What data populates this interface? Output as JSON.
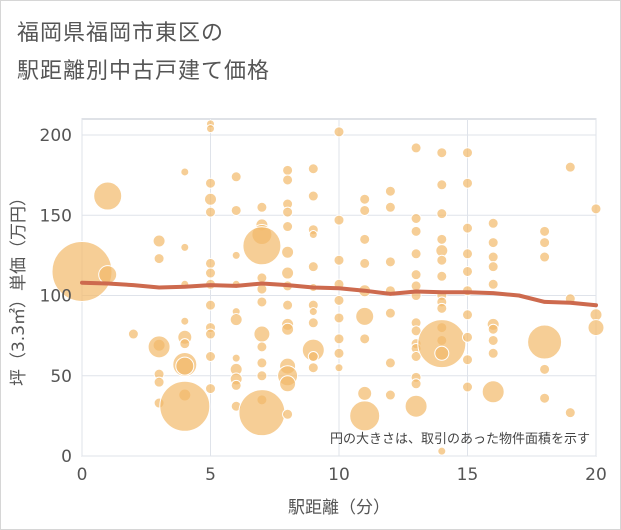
{
  "title_line1": "福岡県福岡市東区の",
  "title_line2": "駅距離別中古戸建て価格",
  "note": "円の大きさは、取引のあった物件面積を示す",
  "colors": {
    "bubble": "#f2b96a",
    "trend": "#cd6a4e",
    "grid": "#dfe3ea",
    "axis": "#bfc5cf"
  },
  "chart_data": {
    "type": "scatter",
    "xlabel": "駅距離（分）",
    "ylabel": "坪（3.3㎡）単価（万円）",
    "xlim": [
      0,
      20
    ],
    "ylim": [
      0,
      210
    ],
    "xticks": [
      0,
      5,
      10,
      15,
      20
    ],
    "yticks": [
      0,
      50,
      100,
      150,
      200
    ],
    "grid": true,
    "points": [
      [
        0,
        115,
        30
      ],
      [
        1,
        162,
        14
      ],
      [
        1,
        113,
        9
      ],
      [
        2,
        76,
        5
      ],
      [
        3,
        134,
        6
      ],
      [
        3,
        123,
        5
      ],
      [
        3,
        69,
        6
      ],
      [
        3,
        68,
        11
      ],
      [
        3,
        51,
        5
      ],
      [
        3,
        46,
        5
      ],
      [
        3,
        33,
        5
      ],
      [
        4,
        177,
        4
      ],
      [
        4,
        130,
        4
      ],
      [
        4,
        107,
        4
      ],
      [
        4,
        84,
        4
      ],
      [
        4,
        74,
        7
      ],
      [
        4,
        70,
        5
      ],
      [
        4,
        57,
        12
      ],
      [
        4,
        56,
        9
      ],
      [
        4,
        38,
        6
      ],
      [
        4,
        31,
        25
      ],
      [
        5,
        207,
        4
      ],
      [
        5,
        204,
        4
      ],
      [
        5,
        170,
        5
      ],
      [
        5,
        160,
        6
      ],
      [
        5,
        152,
        5
      ],
      [
        5,
        120,
        5
      ],
      [
        5,
        114,
        5
      ],
      [
        5,
        107,
        5
      ],
      [
        5,
        94,
        5
      ],
      [
        5,
        80,
        5
      ],
      [
        5,
        76,
        5
      ],
      [
        5,
        62,
        5
      ],
      [
        5,
        42,
        5
      ],
      [
        6,
        174,
        5
      ],
      [
        6,
        153,
        5
      ],
      [
        6,
        125,
        4
      ],
      [
        6,
        107,
        4
      ],
      [
        6,
        90,
        4
      ],
      [
        6,
        85,
        6
      ],
      [
        6,
        61,
        4
      ],
      [
        6,
        54,
        6
      ],
      [
        6,
        48,
        6
      ],
      [
        6,
        44,
        5
      ],
      [
        6,
        31,
        5
      ],
      [
        7,
        155,
        5
      ],
      [
        7,
        144,
        6
      ],
      [
        7,
        138,
        10
      ],
      [
        7,
        131,
        19
      ],
      [
        7,
        111,
        5
      ],
      [
        7,
        104,
        5
      ],
      [
        7,
        96,
        5
      ],
      [
        7,
        76,
        8
      ],
      [
        7,
        68,
        5
      ],
      [
        7,
        58,
        5
      ],
      [
        7,
        50,
        5
      ],
      [
        7,
        35,
        5
      ],
      [
        7,
        27,
        23
      ],
      [
        8,
        178,
        5
      ],
      [
        8,
        172,
        5
      ],
      [
        8,
        157,
        5
      ],
      [
        8,
        152,
        5
      ],
      [
        8,
        143,
        5
      ],
      [
        8,
        127,
        6
      ],
      [
        8,
        114,
        6
      ],
      [
        8,
        106,
        5
      ],
      [
        8,
        94,
        5
      ],
      [
        8,
        82,
        6
      ],
      [
        8,
        79,
        6
      ],
      [
        8,
        56,
        8
      ],
      [
        8,
        50,
        10
      ],
      [
        8,
        45,
        8
      ],
      [
        8,
        26,
        5
      ],
      [
        9,
        179,
        5
      ],
      [
        9,
        162,
        5
      ],
      [
        9,
        141,
        5
      ],
      [
        9,
        138,
        4
      ],
      [
        9,
        118,
        5
      ],
      [
        9,
        105,
        4
      ],
      [
        9,
        94,
        5
      ],
      [
        9,
        90,
        4
      ],
      [
        9,
        83,
        5
      ],
      [
        9,
        66,
        11
      ],
      [
        9,
        62,
        5
      ],
      [
        9,
        55,
        5
      ],
      [
        10,
        202,
        5
      ],
      [
        10,
        147,
        5
      ],
      [
        10,
        122,
        5
      ],
      [
        10,
        107,
        5
      ],
      [
        10,
        97,
        5
      ],
      [
        10,
        86,
        5
      ],
      [
        10,
        73,
        5
      ],
      [
        10,
        64,
        5
      ],
      [
        10,
        55,
        4
      ],
      [
        11,
        160,
        5
      ],
      [
        11,
        153,
        5
      ],
      [
        11,
        135,
        5
      ],
      [
        11,
        120,
        5
      ],
      [
        11,
        103,
        6
      ],
      [
        11,
        87,
        9
      ],
      [
        11,
        73,
        5
      ],
      [
        11,
        39,
        7
      ],
      [
        11,
        25,
        15
      ],
      [
        12,
        165,
        5
      ],
      [
        12,
        155,
        5
      ],
      [
        12,
        121,
        5
      ],
      [
        12,
        103,
        5
      ],
      [
        12,
        89,
        5
      ],
      [
        12,
        58,
        5
      ],
      [
        12,
        38,
        5
      ],
      [
        13,
        192,
        5
      ],
      [
        13,
        148,
        5
      ],
      [
        13,
        140,
        5
      ],
      [
        13,
        126,
        5
      ],
      [
        13,
        113,
        5
      ],
      [
        13,
        106,
        5
      ],
      [
        13,
        100,
        5
      ],
      [
        13,
        83,
        5
      ],
      [
        13,
        78,
        5
      ],
      [
        13,
        70,
        5
      ],
      [
        13,
        67,
        5
      ],
      [
        13,
        62,
        5
      ],
      [
        13,
        49,
        5
      ],
      [
        13,
        45,
        5
      ],
      [
        13,
        31,
        11
      ],
      [
        14,
        189,
        5
      ],
      [
        14,
        169,
        5
      ],
      [
        14,
        151,
        5
      ],
      [
        14,
        135,
        5
      ],
      [
        14,
        128,
        6
      ],
      [
        14,
        122,
        5
      ],
      [
        14,
        112,
        5
      ],
      [
        14,
        100,
        5
      ],
      [
        14,
        96,
        5
      ],
      [
        14,
        92,
        5
      ],
      [
        14,
        80,
        5
      ],
      [
        14,
        72,
        5
      ],
      [
        14,
        70,
        24
      ],
      [
        14,
        64,
        7
      ],
      [
        14,
        3,
        4
      ],
      [
        15,
        189,
        5
      ],
      [
        15,
        170,
        5
      ],
      [
        15,
        142,
        5
      ],
      [
        15,
        126,
        5
      ],
      [
        15,
        115,
        5
      ],
      [
        15,
        103,
        5
      ],
      [
        15,
        88,
        5
      ],
      [
        15,
        74,
        5
      ],
      [
        15,
        60,
        5
      ],
      [
        15,
        43,
        5
      ],
      [
        16,
        145,
        5
      ],
      [
        16,
        133,
        5
      ],
      [
        16,
        124,
        5
      ],
      [
        16,
        118,
        5
      ],
      [
        16,
        107,
        5
      ],
      [
        16,
        82,
        6
      ],
      [
        16,
        79,
        5
      ],
      [
        16,
        72,
        5
      ],
      [
        16,
        64,
        5
      ],
      [
        16,
        40,
        11
      ],
      [
        18,
        140,
        5
      ],
      [
        18,
        133,
        5
      ],
      [
        18,
        124,
        5
      ],
      [
        18,
        71,
        17
      ],
      [
        18,
        54,
        5
      ],
      [
        18,
        36,
        5
      ],
      [
        19,
        180,
        5
      ],
      [
        19,
        98,
        5
      ],
      [
        19,
        27,
        5
      ],
      [
        20,
        154,
        5
      ],
      [
        20,
        88,
        6
      ],
      [
        20,
        80,
        8
      ]
    ],
    "trend": {
      "x": [
        0,
        1,
        2,
        3,
        4,
        5,
        6,
        7,
        8,
        9,
        10,
        11,
        12,
        13,
        14,
        15,
        16,
        17,
        18,
        19,
        20
      ],
      "y": [
        108,
        107.5,
        106.5,
        105,
        105.5,
        106.5,
        106,
        107.5,
        106.5,
        105,
        104.5,
        103,
        101,
        102.5,
        102,
        102,
        101.5,
        100,
        96,
        95.5,
        94
      ]
    }
  }
}
